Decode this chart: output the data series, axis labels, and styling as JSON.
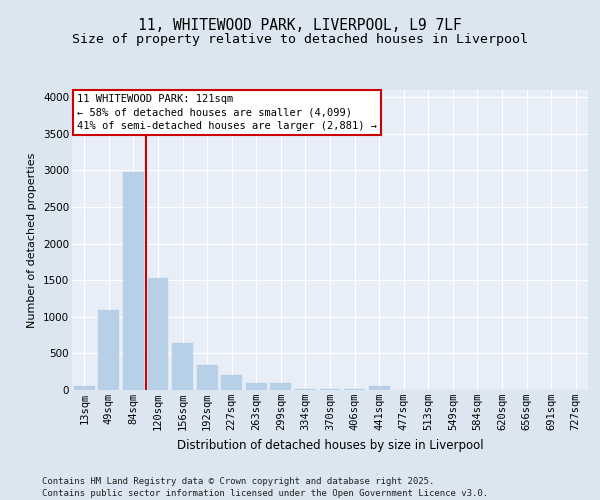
{
  "title_line1": "11, WHITEWOOD PARK, LIVERPOOL, L9 7LF",
  "title_line2": "Size of property relative to detached houses in Liverpool",
  "xlabel": "Distribution of detached houses by size in Liverpool",
  "ylabel": "Number of detached properties",
  "categories": [
    "13sqm",
    "49sqm",
    "84sqm",
    "120sqm",
    "156sqm",
    "192sqm",
    "227sqm",
    "263sqm",
    "299sqm",
    "334sqm",
    "370sqm",
    "406sqm",
    "441sqm",
    "477sqm",
    "513sqm",
    "549sqm",
    "584sqm",
    "620sqm",
    "656sqm",
    "691sqm",
    "727sqm"
  ],
  "values": [
    50,
    1100,
    2980,
    1530,
    640,
    340,
    200,
    100,
    100,
    20,
    10,
    10,
    50,
    0,
    0,
    0,
    0,
    0,
    0,
    0,
    0
  ],
  "bar_color": "#b8cfe8",
  "bar_edgecolor": "#b8cfe8",
  "vline_color": "#cc0000",
  "vline_x_index": 3,
  "ylim": [
    0,
    4100
  ],
  "yticks": [
    0,
    500,
    1000,
    1500,
    2000,
    2500,
    3000,
    3500,
    4000
  ],
  "annotation_text": "11 WHITEWOOD PARK: 121sqm\n← 58% of detached houses are smaller (4,099)\n41% of semi-detached houses are larger (2,881) →",
  "annotation_box_facecolor": "#ffffff",
  "annotation_box_edgecolor": "#cc0000",
  "footer_text": "Contains HM Land Registry data © Crown copyright and database right 2025.\nContains public sector information licensed under the Open Government Licence v3.0.",
  "bg_color": "#dce6f0",
  "plot_bg_color": "#e8eef8",
  "grid_color": "#ffffff",
  "title_fontsize": 10.5,
  "subtitle_fontsize": 9.5,
  "xlabel_fontsize": 8.5,
  "ylabel_fontsize": 8,
  "tick_fontsize": 7.5,
  "annotation_fontsize": 7.5,
  "footer_fontsize": 6.5
}
